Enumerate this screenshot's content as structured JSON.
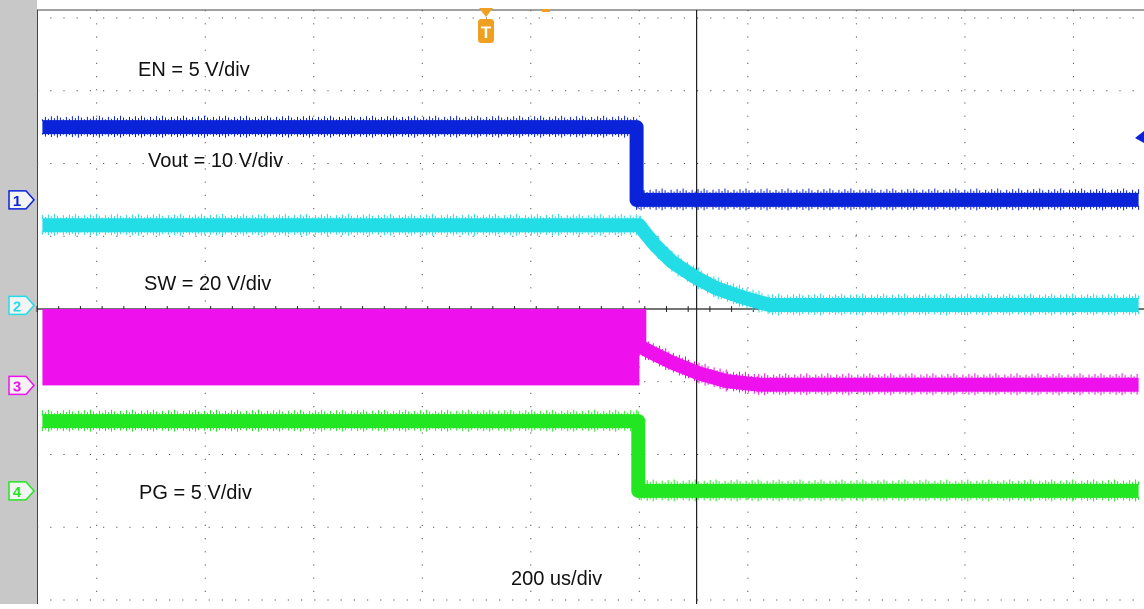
{
  "chart_data": {
    "type": "line",
    "title": "",
    "timebase": {
      "label": "200 us/div",
      "us_per_div": 200,
      "divisions": 10
    },
    "vertical_divisions": 8,
    "trigger": {
      "marker": "T",
      "time_us": 0,
      "color": "#f0a020"
    },
    "x_unit": "us",
    "xlim": [
      -1110,
      930
    ],
    "series": [
      {
        "name": "EN = 5 V/div",
        "channel": "1",
        "color": "#0a22d8",
        "scale_v_per_div": 5,
        "ground_div": 1.5,
        "x": [
          -1100,
          -5,
          -5,
          920
        ],
        "y": [
          5,
          5,
          0,
          0
        ]
      },
      {
        "name": "Vout = 10 V/div",
        "channel": "2",
        "color": "#22dde6",
        "scale_v_per_div": 10,
        "ground_div": 0.05,
        "x": [
          -1100,
          0,
          10,
          30,
          60,
          100,
          140,
          190,
          240,
          920
        ],
        "y": [
          11,
          11,
          10,
          8.2,
          6,
          4,
          2.4,
          1.1,
          0.05,
          0.05
        ]
      },
      {
        "name": "SW = 20 V/div",
        "channel": "3",
        "color": "#ee11ee",
        "scale_v_per_div": 20,
        "ground_div": -1.05,
        "switching_region": {
          "x": [
            -1100,
            0
          ],
          "y_low": 0,
          "y_high": 21
        },
        "x": [
          0,
          0,
          20,
          60,
          110,
          160,
          220,
          920
        ],
        "y": [
          21,
          10.8,
          9.2,
          6.3,
          3.3,
          1.2,
          0.2,
          0.2
        ]
      },
      {
        "name": "PG = 5 V/div",
        "channel": "4",
        "color": "#22e622",
        "scale_v_per_div": 5,
        "ground_div": -2.5,
        "x": [
          -1100,
          -2,
          -2,
          920
        ],
        "y": [
          4.8,
          4.8,
          0,
          0
        ]
      }
    ],
    "grid": true,
    "legend": "none"
  }
}
